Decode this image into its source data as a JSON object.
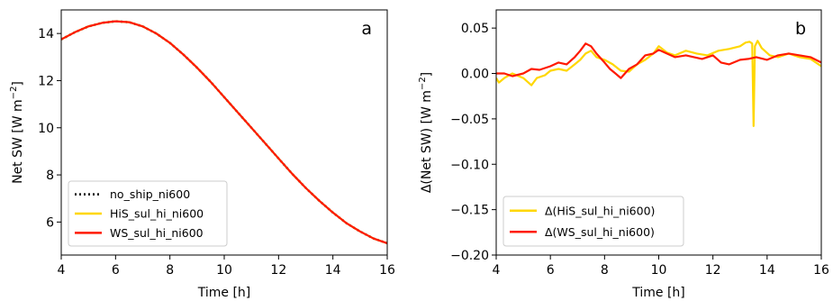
{
  "chart_data": [
    {
      "type": "line",
      "panel_letter": "a",
      "xlabel": "Time [h]",
      "ylabel": "Net SW [W m",
      "ylabel_sup": "−2",
      "ylabel_end": "]",
      "xlim": [
        4,
        16
      ],
      "ylim": [
        4.6,
        15.0
      ],
      "xticks": [
        4,
        6,
        8,
        10,
        12,
        14,
        16
      ],
      "xtick_labels": [
        "4",
        "6",
        "8",
        "10",
        "12",
        "14",
        "16"
      ],
      "yticks": [
        6,
        8,
        10,
        12,
        14
      ],
      "ytick_labels": [
        "6",
        "8",
        "10",
        "12",
        "14"
      ],
      "legend_position": "lower-left",
      "x": [
        4.0,
        4.5,
        5.0,
        5.5,
        6.0,
        6.5,
        7.0,
        7.5,
        8.0,
        8.5,
        9.0,
        9.5,
        10.0,
        10.5,
        11.0,
        11.5,
        12.0,
        12.5,
        13.0,
        13.5,
        14.0,
        14.5,
        15.0,
        15.5,
        16.0
      ],
      "series": [
        {
          "name": "no_ship_ni600",
          "color": "#000000",
          "style": "dotted",
          "values": [
            13.75,
            14.05,
            14.3,
            14.45,
            14.52,
            14.48,
            14.3,
            14.0,
            13.6,
            13.1,
            12.55,
            11.95,
            11.3,
            10.65,
            10.0,
            9.35,
            8.7,
            8.05,
            7.45,
            6.9,
            6.4,
            5.95,
            5.6,
            5.3,
            5.1
          ]
        },
        {
          "name": "HiS_sul_hi_ni600",
          "color": "#FFD700",
          "style": "solid",
          "values": [
            13.75,
            14.05,
            14.3,
            14.45,
            14.52,
            14.48,
            14.3,
            14.0,
            13.6,
            13.1,
            12.55,
            11.95,
            11.3,
            10.65,
            10.0,
            9.35,
            8.7,
            8.05,
            7.45,
            6.9,
            6.4,
            5.95,
            5.6,
            5.3,
            5.1
          ]
        },
        {
          "name": "WS_sul_hi_ni600",
          "color": "#FF1A00",
          "style": "solid",
          "values": [
            13.75,
            14.05,
            14.3,
            14.45,
            14.52,
            14.48,
            14.3,
            14.0,
            13.6,
            13.1,
            12.55,
            11.95,
            11.3,
            10.65,
            10.0,
            9.35,
            8.7,
            8.05,
            7.45,
            6.9,
            6.4,
            5.95,
            5.6,
            5.3,
            5.1
          ]
        }
      ]
    },
    {
      "type": "line",
      "panel_letter": "b",
      "xlabel": "Time [h]",
      "ylabel": "Δ(Net SW) [W m",
      "ylabel_sup": "−2",
      "ylabel_end": "]",
      "xlim": [
        4,
        16
      ],
      "ylim": [
        -0.2,
        0.07
      ],
      "xticks": [
        4,
        6,
        8,
        10,
        12,
        14,
        16
      ],
      "xtick_labels": [
        "4",
        "6",
        "8",
        "10",
        "12",
        "14",
        "16"
      ],
      "yticks": [
        -0.2,
        -0.15,
        -0.1,
        -0.05,
        0.0,
        0.05
      ],
      "ytick_labels": [
        "−0.20",
        "−0.15",
        "−0.10",
        "−0.05",
        "0.00",
        "0.05"
      ],
      "legend_position": "lower-left",
      "series": [
        {
          "name": "Δ(HiS_sul_hi_ni600)",
          "color": "#FFD700",
          "style": "solid",
          "x": [
            4.0,
            4.1,
            4.3,
            4.6,
            5.0,
            5.3,
            5.5,
            5.8,
            6.0,
            6.3,
            6.6,
            6.9,
            7.1,
            7.3,
            7.5,
            7.7,
            8.0,
            8.3,
            8.6,
            8.9,
            9.2,
            9.5,
            9.8,
            10.0,
            10.3,
            10.6,
            11.0,
            11.4,
            11.8,
            12.2,
            12.6,
            13.0,
            13.2,
            13.35,
            13.45,
            13.5,
            13.55,
            13.65,
            13.8,
            14.1,
            14.4,
            14.8,
            15.2,
            15.6,
            16.0
          ],
          "values": [
            -0.005,
            -0.01,
            -0.005,
            0.0,
            -0.005,
            -0.013,
            -0.005,
            -0.002,
            0.003,
            0.005,
            0.003,
            0.01,
            0.015,
            0.022,
            0.025,
            0.018,
            0.015,
            0.01,
            0.003,
            0.002,
            0.01,
            0.015,
            0.022,
            0.03,
            0.023,
            0.02,
            0.025,
            0.022,
            0.02,
            0.025,
            0.027,
            0.03,
            0.034,
            0.035,
            0.033,
            -0.058,
            0.03,
            0.036,
            0.028,
            0.02,
            0.018,
            0.022,
            0.018,
            0.016,
            0.008
          ]
        },
        {
          "name": "Δ(WS_sul_hi_ni600)",
          "color": "#FF1A00",
          "style": "solid",
          "x": [
            4.0,
            4.3,
            4.6,
            5.0,
            5.3,
            5.6,
            6.0,
            6.3,
            6.6,
            6.9,
            7.1,
            7.3,
            7.5,
            7.7,
            8.0,
            8.2,
            8.4,
            8.6,
            8.9,
            9.2,
            9.5,
            9.8,
            10.0,
            10.3,
            10.6,
            11.0,
            11.3,
            11.6,
            12.0,
            12.3,
            12.6,
            13.0,
            13.3,
            13.6,
            14.0,
            14.4,
            14.8,
            15.2,
            15.6,
            16.0
          ],
          "values": [
            0.0,
            0.0,
            -0.003,
            0.0,
            0.005,
            0.004,
            0.008,
            0.012,
            0.01,
            0.018,
            0.025,
            0.033,
            0.03,
            0.022,
            0.012,
            0.005,
            0.0,
            -0.005,
            0.005,
            0.01,
            0.02,
            0.022,
            0.026,
            0.022,
            0.018,
            0.02,
            0.018,
            0.016,
            0.02,
            0.012,
            0.01,
            0.015,
            0.016,
            0.018,
            0.015,
            0.02,
            0.022,
            0.02,
            0.018,
            0.012
          ]
        }
      ]
    }
  ]
}
